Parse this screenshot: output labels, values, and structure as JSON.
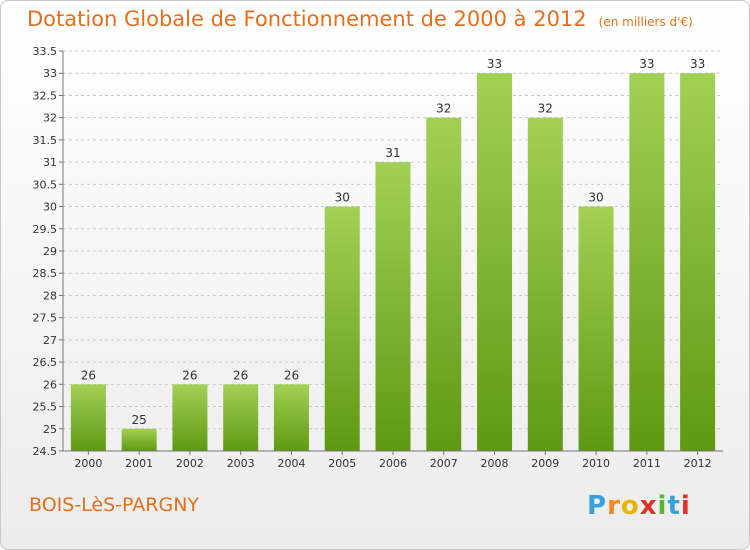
{
  "header": {
    "title": "Dotation Globale de Fonctionnement de 2000 à 2012",
    "unit_note": "(en milliers d'€)"
  },
  "footer": {
    "commune": "BOIS-LèS-PARGNY",
    "logo_letters": [
      "P",
      "r",
      "o",
      "x",
      "i",
      "t",
      "i"
    ],
    "logo_colors": [
      "#3aa0dc",
      "#f08a1c",
      "#e8b400",
      "#e0302a",
      "#59b32f",
      "#3aa0dc",
      "#e0302a"
    ]
  },
  "colors": {
    "bar_light": "#a2d055",
    "bar_dark": "#5f9913",
    "grid": "#c9c9c9",
    "axis": "#777777",
    "text": "#333333",
    "title": "#e36f1e"
  },
  "chart_data": {
    "type": "bar",
    "categories": [
      "2000",
      "2001",
      "2002",
      "2003",
      "2004",
      "2005",
      "2006",
      "2007",
      "2008",
      "2009",
      "2010",
      "2011",
      "2012"
    ],
    "values": [
      26,
      25,
      26,
      26,
      26,
      30,
      31,
      32,
      33,
      32,
      30,
      33,
      33
    ],
    "data_labels": [
      "26",
      "25",
      "26",
      "26",
      "26",
      "30",
      "31",
      "32",
      "33",
      "32",
      "30",
      "33",
      "33"
    ],
    "ylim": [
      24.5,
      33.5
    ],
    "yticks": [
      24.5,
      25,
      25.5,
      26,
      26.5,
      27,
      27.5,
      28,
      28.5,
      29,
      29.5,
      30,
      30.5,
      31,
      31.5,
      32,
      32.5,
      33,
      33.5
    ],
    "ytick_labels": [
      "24.5",
      "25",
      "25.5",
      "26",
      "26.5",
      "27",
      "27.5",
      "28",
      "28.5",
      "29",
      "29.5",
      "30",
      "30.5",
      "31",
      "31.5",
      "32",
      "32.5",
      "33",
      "33.5"
    ],
    "grid": true
  }
}
